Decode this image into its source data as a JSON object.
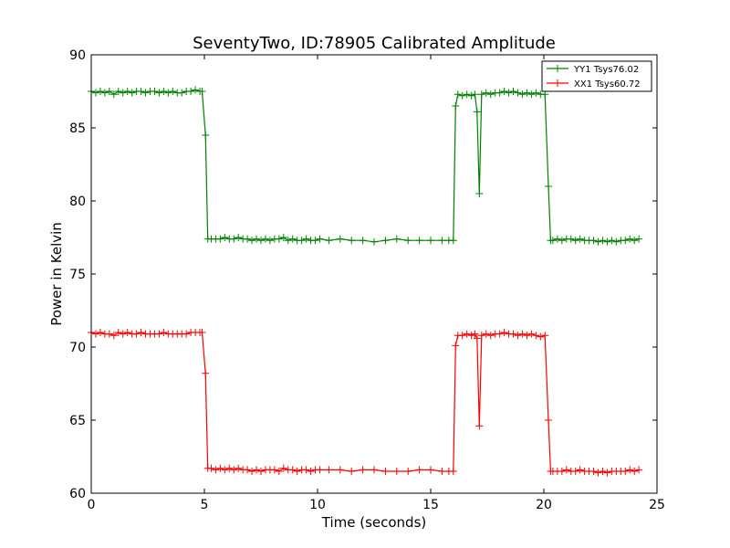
{
  "chart_data": {
    "type": "line",
    "title": "SeventyTwo, ID:78905 Calibrated Amplitude",
    "xlabel": "Time (seconds)",
    "ylabel": "Power in Kelvin",
    "xlim": [
      0,
      25
    ],
    "ylim": [
      60,
      90
    ],
    "xticks": [
      0,
      5,
      10,
      15,
      20,
      25
    ],
    "yticks": [
      60,
      65,
      70,
      75,
      80,
      85,
      90
    ],
    "grid": false,
    "legend_position": "top-right",
    "series": [
      {
        "name": "YY1 Tsys76.02",
        "color": "#008000",
        "x": [
          0.0,
          0.2,
          0.4,
          0.6,
          0.8,
          1.0,
          1.2,
          1.4,
          1.6,
          1.8,
          2.0,
          2.2,
          2.4,
          2.6,
          2.8,
          3.0,
          3.2,
          3.4,
          3.6,
          3.8,
          4.0,
          4.2,
          4.4,
          4.6,
          4.8,
          4.9,
          5.05,
          5.15,
          5.3,
          5.5,
          5.7,
          5.9,
          6.1,
          6.3,
          6.5,
          6.7,
          6.9,
          7.1,
          7.3,
          7.5,
          7.7,
          7.9,
          8.1,
          8.3,
          8.5,
          8.7,
          8.9,
          9.1,
          9.3,
          9.5,
          9.7,
          9.9,
          10.1,
          10.5,
          11.0,
          11.5,
          12.0,
          12.5,
          13.0,
          13.5,
          14.0,
          14.5,
          15.0,
          15.5,
          15.8,
          16.0,
          16.1,
          16.2,
          16.4,
          16.6,
          16.8,
          16.95,
          17.05,
          17.15,
          17.25,
          17.45,
          17.65,
          17.85,
          18.05,
          18.25,
          18.45,
          18.65,
          18.85,
          19.05,
          19.25,
          19.45,
          19.65,
          19.85,
          20.05,
          20.2,
          20.3,
          20.4,
          20.6,
          20.8,
          21.0,
          21.2,
          21.4,
          21.6,
          21.8,
          22.0,
          22.2,
          22.4,
          22.6,
          22.8,
          23.0,
          23.2,
          23.4,
          23.6,
          23.8,
          24.0,
          24.2
        ],
        "y": [
          87.5,
          87.4,
          87.5,
          87.4,
          87.5,
          87.3,
          87.5,
          87.4,
          87.5,
          87.4,
          87.5,
          87.5,
          87.4,
          87.5,
          87.5,
          87.4,
          87.5,
          87.4,
          87.5,
          87.4,
          87.4,
          87.5,
          87.5,
          87.6,
          87.5,
          87.5,
          84.5,
          77.4,
          77.4,
          77.4,
          77.4,
          77.5,
          77.4,
          77.4,
          77.5,
          77.4,
          77.4,
          77.3,
          77.4,
          77.3,
          77.4,
          77.3,
          77.4,
          77.4,
          77.5,
          77.3,
          77.4,
          77.3,
          77.3,
          77.4,
          77.3,
          77.3,
          77.4,
          77.3,
          77.4,
          77.3,
          77.3,
          77.2,
          77.3,
          77.4,
          77.3,
          77.3,
          77.3,
          77.3,
          77.3,
          77.3,
          86.5,
          87.3,
          87.2,
          87.3,
          87.2,
          87.3,
          86.1,
          80.5,
          87.3,
          87.4,
          87.3,
          87.4,
          87.4,
          87.5,
          87.4,
          87.5,
          87.4,
          87.3,
          87.4,
          87.3,
          87.4,
          87.3,
          87.3,
          81.0,
          77.3,
          77.3,
          77.4,
          77.3,
          77.4,
          77.4,
          77.3,
          77.4,
          77.3,
          77.3,
          77.3,
          77.2,
          77.3,
          77.2,
          77.3,
          77.2,
          77.3,
          77.3,
          77.4,
          77.3,
          77.4
        ]
      },
      {
        "name": "XX1 Tsys60.72",
        "color": "#ff0000",
        "x": [
          0.0,
          0.2,
          0.4,
          0.6,
          0.8,
          1.0,
          1.2,
          1.4,
          1.6,
          1.8,
          2.0,
          2.2,
          2.4,
          2.6,
          2.8,
          3.0,
          3.2,
          3.4,
          3.6,
          3.8,
          4.0,
          4.2,
          4.4,
          4.6,
          4.8,
          4.9,
          5.05,
          5.15,
          5.3,
          5.5,
          5.7,
          5.9,
          6.1,
          6.3,
          6.5,
          6.7,
          6.9,
          7.1,
          7.3,
          7.5,
          7.7,
          7.9,
          8.1,
          8.3,
          8.5,
          8.7,
          8.9,
          9.1,
          9.3,
          9.5,
          9.7,
          9.9,
          10.1,
          10.5,
          11.0,
          11.5,
          12.0,
          12.5,
          13.0,
          13.5,
          14.0,
          14.5,
          15.0,
          15.5,
          15.8,
          16.0,
          16.1,
          16.2,
          16.4,
          16.6,
          16.8,
          16.95,
          17.05,
          17.15,
          17.25,
          17.45,
          17.65,
          17.85,
          18.05,
          18.25,
          18.45,
          18.65,
          18.85,
          19.05,
          19.25,
          19.45,
          19.65,
          19.85,
          20.05,
          20.2,
          20.3,
          20.4,
          20.6,
          20.8,
          21.0,
          21.2,
          21.4,
          21.6,
          21.8,
          22.0,
          22.2,
          22.4,
          22.6,
          22.8,
          23.0,
          23.2,
          23.4,
          23.6,
          23.8,
          24.0,
          24.2
        ],
        "y": [
          71.0,
          70.9,
          71.0,
          70.9,
          70.9,
          70.8,
          71.0,
          70.9,
          71.0,
          70.9,
          70.9,
          71.0,
          70.9,
          70.9,
          70.9,
          70.9,
          71.0,
          70.9,
          70.9,
          70.9,
          70.9,
          70.9,
          71.0,
          71.0,
          71.0,
          71.0,
          68.2,
          61.7,
          61.7,
          61.6,
          61.7,
          61.6,
          61.7,
          61.6,
          61.7,
          61.6,
          61.6,
          61.5,
          61.6,
          61.5,
          61.6,
          61.6,
          61.6,
          61.5,
          61.7,
          61.6,
          61.6,
          61.5,
          61.6,
          61.6,
          61.5,
          61.6,
          61.6,
          61.6,
          61.6,
          61.5,
          61.6,
          61.6,
          61.5,
          61.5,
          61.5,
          61.6,
          61.6,
          61.5,
          61.5,
          61.5,
          70.1,
          70.8,
          70.8,
          70.9,
          70.8,
          70.9,
          70.6,
          64.6,
          70.8,
          70.9,
          70.8,
          70.9,
          70.9,
          71.0,
          70.9,
          70.9,
          70.8,
          70.9,
          70.8,
          70.9,
          70.8,
          70.7,
          70.8,
          65.0,
          61.5,
          61.5,
          61.5,
          61.5,
          61.6,
          61.5,
          61.5,
          61.6,
          61.5,
          61.5,
          61.5,
          61.4,
          61.5,
          61.4,
          61.5,
          61.5,
          61.5,
          61.5,
          61.6,
          61.5,
          61.6
        ]
      }
    ]
  }
}
